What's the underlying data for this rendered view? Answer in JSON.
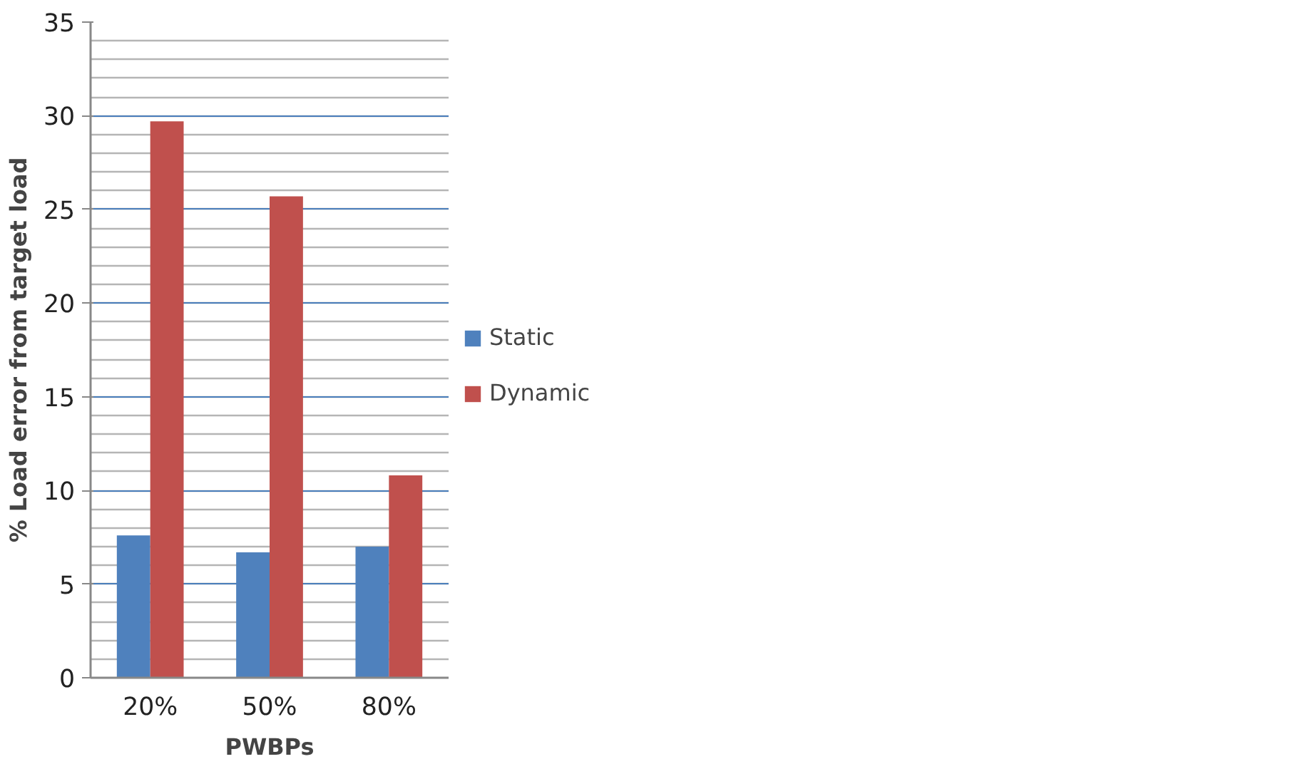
{
  "chart_data": {
    "type": "bar",
    "xlabel": "PWBPs",
    "ylabel": "% Load error from target load",
    "categories": [
      "20%",
      "50%",
      "80%"
    ],
    "series": [
      {
        "name": "Static",
        "color": "#4f81bd",
        "values": [
          7.6,
          6.7,
          7.0
        ]
      },
      {
        "name": "Dynamic",
        "color": "#c0504d",
        "values": [
          29.7,
          25.7,
          10.8
        ]
      }
    ],
    "ylim": [
      0,
      35
    ],
    "yticks": [
      0,
      5,
      10,
      15,
      20,
      25,
      30,
      35
    ],
    "grid": "y",
    "legend": "right"
  }
}
